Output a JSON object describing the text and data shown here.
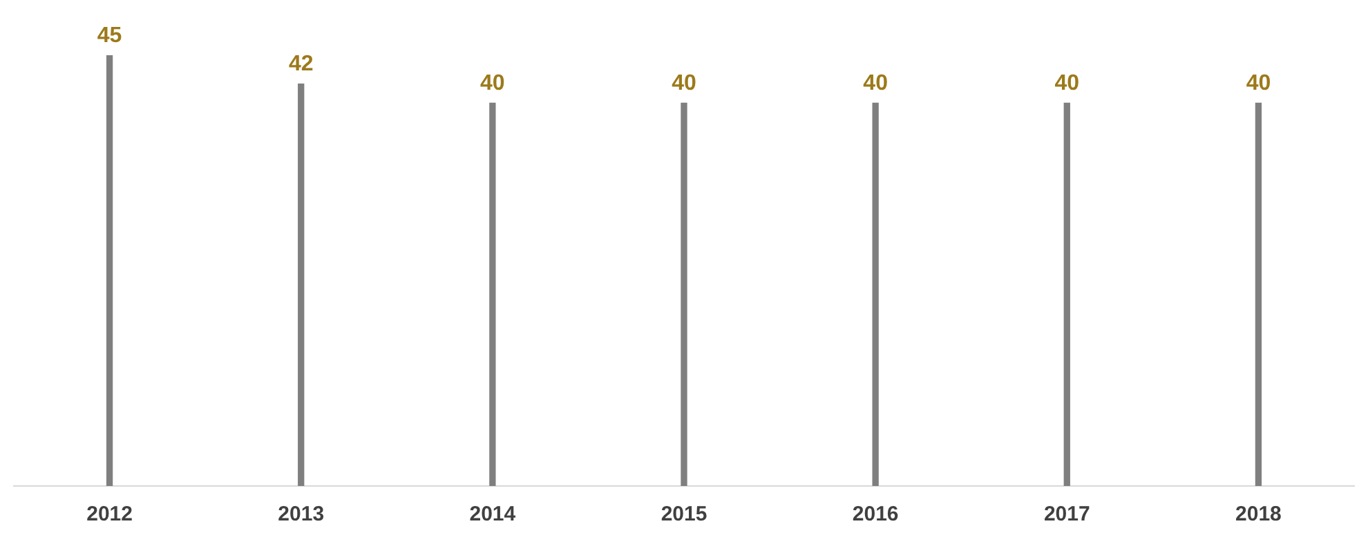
{
  "chart_data": {
    "type": "bar",
    "categories": [
      "2012",
      "2013",
      "2014",
      "2015",
      "2016",
      "2017",
      "2018"
    ],
    "values": [
      45,
      42,
      40,
      40,
      40,
      40,
      40
    ],
    "color": "#7f7f7f",
    "data_labels": true,
    "grid": false,
    "legend": false,
    "tick_labels": "x"
  }
}
